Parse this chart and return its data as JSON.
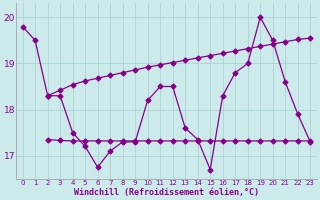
{
  "line1_x": [
    0,
    1,
    2,
    3,
    4,
    5,
    6,
    7,
    8,
    9,
    10,
    11,
    12,
    13,
    14,
    15,
    16,
    17,
    18,
    19,
    20,
    21,
    22,
    23
  ],
  "line1_y": [
    19.8,
    19.5,
    18.3,
    18.3,
    17.5,
    17.2,
    16.75,
    17.1,
    17.3,
    17.3,
    18.2,
    18.5,
    18.5,
    17.6,
    17.35,
    16.7,
    18.3,
    18.8,
    19.0,
    20.0,
    19.5,
    18.6,
    17.9,
    17.3
  ],
  "line2_x": [
    2,
    3,
    4,
    5,
    6,
    7,
    8,
    9,
    10,
    11,
    12,
    13,
    14,
    15,
    16,
    17,
    18,
    19,
    20,
    21,
    22,
    23
  ],
  "line2_y": [
    18.3,
    18.42,
    18.54,
    18.62,
    18.68,
    18.74,
    18.8,
    18.86,
    18.92,
    18.97,
    19.02,
    19.07,
    19.12,
    19.17,
    19.22,
    19.27,
    19.32,
    19.37,
    19.42,
    19.47,
    19.52,
    19.55
  ],
  "line3_x": [
    2,
    3,
    4,
    5,
    6,
    7,
    8,
    9,
    10,
    11,
    12,
    13,
    14,
    15,
    16,
    17,
    18,
    19,
    20,
    21,
    22,
    23
  ],
  "line3_y": [
    17.35,
    17.33,
    17.32,
    17.32,
    17.32,
    17.32,
    17.32,
    17.32,
    17.32,
    17.32,
    17.32,
    17.32,
    17.32,
    17.32,
    17.32,
    17.32,
    17.32,
    17.32,
    17.32,
    17.32,
    17.32,
    17.32
  ],
  "line_color": "#880088",
  "bg_color": "#cceaea",
  "grid_color": "#aad4d4",
  "xlabel": "Windchill (Refroidissement éolien,°C)",
  "ylim": [
    16.5,
    20.3
  ],
  "xlim": [
    -0.5,
    23.5
  ],
  "yticks": [
    17,
    18,
    19,
    20
  ],
  "xticks": [
    0,
    1,
    2,
    3,
    4,
    5,
    6,
    7,
    8,
    9,
    10,
    11,
    12,
    13,
    14,
    15,
    16,
    17,
    18,
    19,
    20,
    21,
    22,
    23
  ]
}
